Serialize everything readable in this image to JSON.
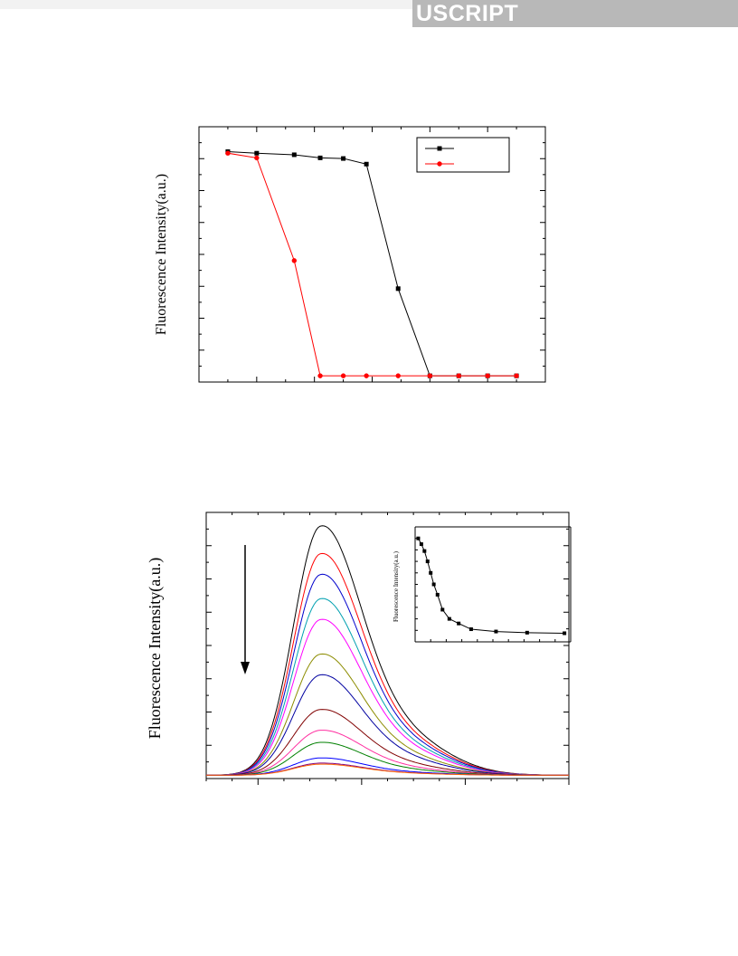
{
  "header": {
    "banner_text": "USCRIPT"
  },
  "chart_data": [
    {
      "type": "line",
      "ylabel": "Fluorescence Intensity(a.u.)",
      "xlim": [
        0,
        12
      ],
      "ylim": [
        -0.2,
        8
      ],
      "legend": "top-right",
      "grid": false,
      "series": [
        {
          "marker": "square",
          "color": "#000000",
          "x": [
            1,
            2,
            3.3,
            4.2,
            5,
            5.8,
            6.9,
            8,
            9,
            10,
            11
          ],
          "y": [
            7.2,
            7.15,
            7.1,
            7.0,
            6.98,
            6.8,
            2.8,
            0,
            0,
            0,
            0
          ]
        },
        {
          "marker": "circle",
          "color": "#ff0000",
          "x": [
            1,
            2,
            3.3,
            4.2,
            5,
            5.8,
            6.9,
            8,
            9,
            10,
            11
          ],
          "y": [
            7.15,
            7.0,
            3.7,
            0,
            0,
            0,
            0,
            0,
            0,
            0,
            0
          ]
        }
      ]
    },
    {
      "type": "line",
      "ylabel": "Fluorescence Intensity(a.u.)",
      "xlim": [
        0,
        350
      ],
      "ylim": [
        0,
        8
      ],
      "grid": false,
      "annotation": "downward arrow indicating decreasing intensity",
      "peak_x": 110,
      "series_peaks": [
        7.3,
        6.5,
        5.9,
        5.2,
        4.6,
        3.6,
        3.0,
        2.0,
        1.4,
        1.05,
        0.6,
        0.45,
        0.42
      ],
      "series_colors": [
        "#000000",
        "#ff0000",
        "#0000cc",
        "#00a0b0",
        "#ff00ff",
        "#8c8c00",
        "#0000a0",
        "#800000",
        "#ff2ea0",
        "#008000",
        "#0000ff",
        "#800080",
        "#ff6600"
      ],
      "baseline": 0.1
    },
    {
      "type": "line",
      "ylabel": "Fluorescence Intensity(a.u.)",
      "xlim": [
        0,
        25
      ],
      "ylim": [
        0,
        10
      ],
      "marker": "square",
      "color": "#000000",
      "x": [
        0.5,
        1.0,
        1.5,
        2.0,
        2.5,
        3.0,
        3.6,
        4.4,
        5.5,
        7.0,
        9.0,
        13.0,
        18.0,
        24.0
      ],
      "y": [
        9.0,
        8.5,
        7.9,
        7.0,
        6.0,
        5.0,
        4.1,
        2.8,
        2.0,
        1.6,
        1.1,
        0.9,
        0.8,
        0.75
      ]
    }
  ]
}
